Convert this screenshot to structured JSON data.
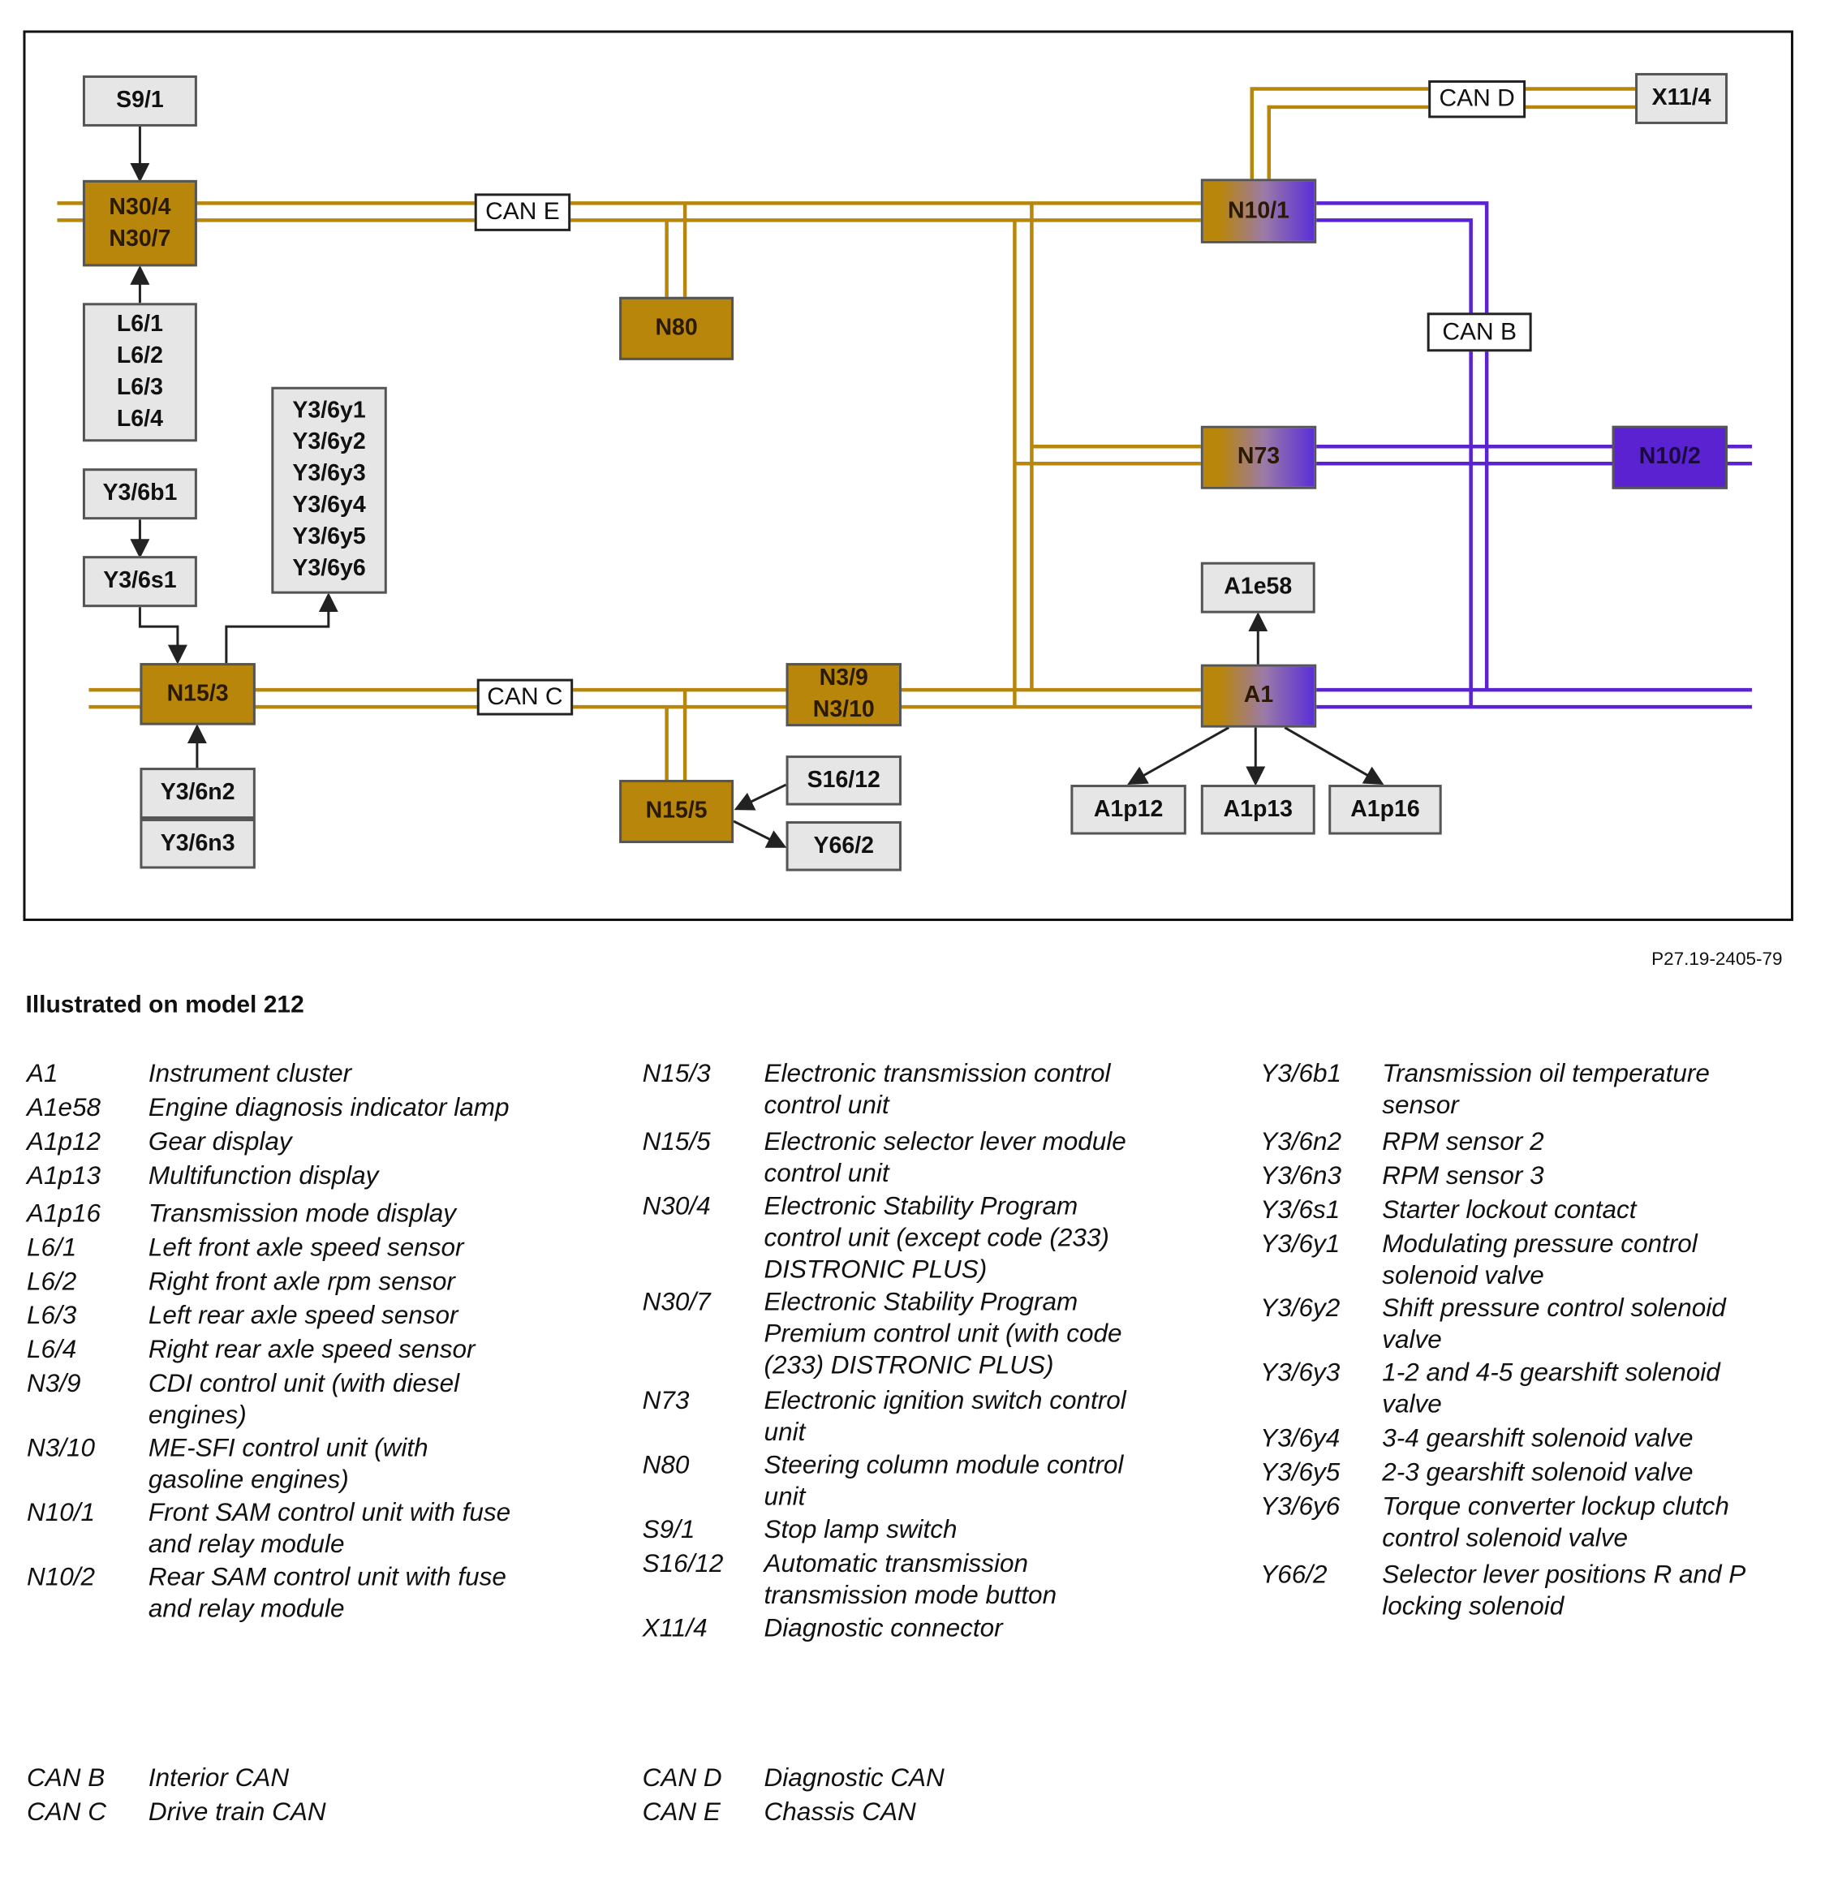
{
  "diagram": {
    "boxes": {
      "s9_1": [
        "S9/1"
      ],
      "n30": [
        "N30/4",
        "N30/7"
      ],
      "l6": [
        "L6/1",
        "L6/2",
        "L6/3",
        "L6/4"
      ],
      "y3_6b1": [
        "Y3/6b1"
      ],
      "y3_6s1": [
        "Y3/6s1"
      ],
      "y3_6y": [
        "Y3/6y1",
        "Y3/6y2",
        "Y3/6y3",
        "Y3/6y4",
        "Y3/6y5",
        "Y3/6y6"
      ],
      "n15_3": [
        "N15/3"
      ],
      "y3_6n2": [
        "Y3/6n2"
      ],
      "y3_6n3": [
        "Y3/6n3"
      ],
      "n80": [
        "N80"
      ],
      "n3": [
        "N3/9",
        "N3/10"
      ],
      "n15_5": [
        "N15/5"
      ],
      "s16_12": [
        "S16/12"
      ],
      "y66_2": [
        "Y66/2"
      ],
      "n10_1": [
        "N10/1"
      ],
      "x11_4": [
        "X11/4"
      ],
      "n73": [
        "N73"
      ],
      "n10_2": [
        "N10/2"
      ],
      "a1e58": [
        "A1e58"
      ],
      "a1": [
        "A1"
      ],
      "a1p12": [
        "A1p12"
      ],
      "a1p13": [
        "A1p13"
      ],
      "a1p16": [
        "A1p16"
      ]
    },
    "bus_labels": {
      "can_e": "CAN E",
      "can_c": "CAN C",
      "can_d": "CAN D",
      "can_b": "CAN B"
    },
    "colors": {
      "chassis_can": "#b8860b",
      "interior_can": "#5a22d0",
      "component": "#e6e6e6"
    }
  },
  "figure_code": "P27.19-2405-79",
  "title": "Illustrated on model 212",
  "legend": [
    {
      "code": "A1",
      "desc": "Instrument cluster"
    },
    {
      "code": "A1e58",
      "desc": "Engine diagnosis indicator lamp"
    },
    {
      "code": "A1p12",
      "desc": "Gear display"
    },
    {
      "code": "A1p13",
      "desc": "Multifunction display"
    },
    {
      "code": "A1p16",
      "desc": "Transmission mode display"
    },
    {
      "code": "L6/1",
      "desc": "Left front axle speed sensor"
    },
    {
      "code": "L6/2",
      "desc": "Right front axle rpm sensor"
    },
    {
      "code": "L6/3",
      "desc": "Left rear axle speed sensor"
    },
    {
      "code": "L6/4",
      "desc": "Right rear axle speed sensor"
    },
    {
      "code": "N3/9",
      "desc": "CDI control unit (with diesel\nengines)"
    },
    {
      "code": "N3/10",
      "desc": "ME-SFI control unit (with\ngasoline engines)"
    },
    {
      "code": "N10/1",
      "desc": "Front SAM control unit with fuse\nand relay module"
    },
    {
      "code": "N10/2",
      "desc": "Rear SAM control unit with fuse\nand relay module"
    },
    {
      "code": "N15/3",
      "desc": "Electronic transmission control\ncontrol unit"
    },
    {
      "code": "N15/5",
      "desc": "Electronic selector lever module\ncontrol unit"
    },
    {
      "code": "N30/4",
      "desc": "Electronic Stability Program\ncontrol unit (except code (233)\nDISTRONIC PLUS)"
    },
    {
      "code": "N30/7",
      "desc": "Electronic Stability Program\nPremium control unit (with code\n(233) DISTRONIC PLUS)"
    },
    {
      "code": "N73",
      "desc": "Electronic ignition switch control\nunit"
    },
    {
      "code": "N80",
      "desc": "Steering column module control\nunit"
    },
    {
      "code": "S9/1",
      "desc": "Stop lamp switch"
    },
    {
      "code": "S16/12",
      "desc": "Automatic transmission\ntransmission mode button"
    },
    {
      "code": "X11/4",
      "desc": "Diagnostic connector"
    },
    {
      "code": "Y3/6b1",
      "desc": "Transmission oil temperature\nsensor"
    },
    {
      "code": "Y3/6n2",
      "desc": "RPM sensor 2"
    },
    {
      "code": "Y3/6n3",
      "desc": "RPM sensor 3"
    },
    {
      "code": "Y3/6s1",
      "desc": "Starter lockout contact"
    },
    {
      "code": "Y3/6y1",
      "desc": "Modulating pressure control\nsolenoid valve"
    },
    {
      "code": "Y3/6y2",
      "desc": "Shift pressure control solenoid\nvalve"
    },
    {
      "code": "Y3/6y3",
      "desc": "1-2 and 4-5 gearshift solenoid\nvalve"
    },
    {
      "code": "Y3/6y4",
      "desc": "3-4 gearshift solenoid valve"
    },
    {
      "code": "Y3/6y5",
      "desc": "2-3 gearshift solenoid valve"
    },
    {
      "code": "Y3/6y6",
      "desc": "Torque converter lockup clutch\ncontrol solenoid valve"
    },
    {
      "code": "Y66/2",
      "desc": "Selector lever positions R and P\nlocking solenoid"
    },
    {
      "code": "CAN B",
      "desc": "Interior CAN"
    },
    {
      "code": "CAN C",
      "desc": "Drive train CAN"
    },
    {
      "code": "CAN D",
      "desc": "Diagnostic CAN"
    },
    {
      "code": "CAN E",
      "desc": "Chassis CAN"
    }
  ]
}
